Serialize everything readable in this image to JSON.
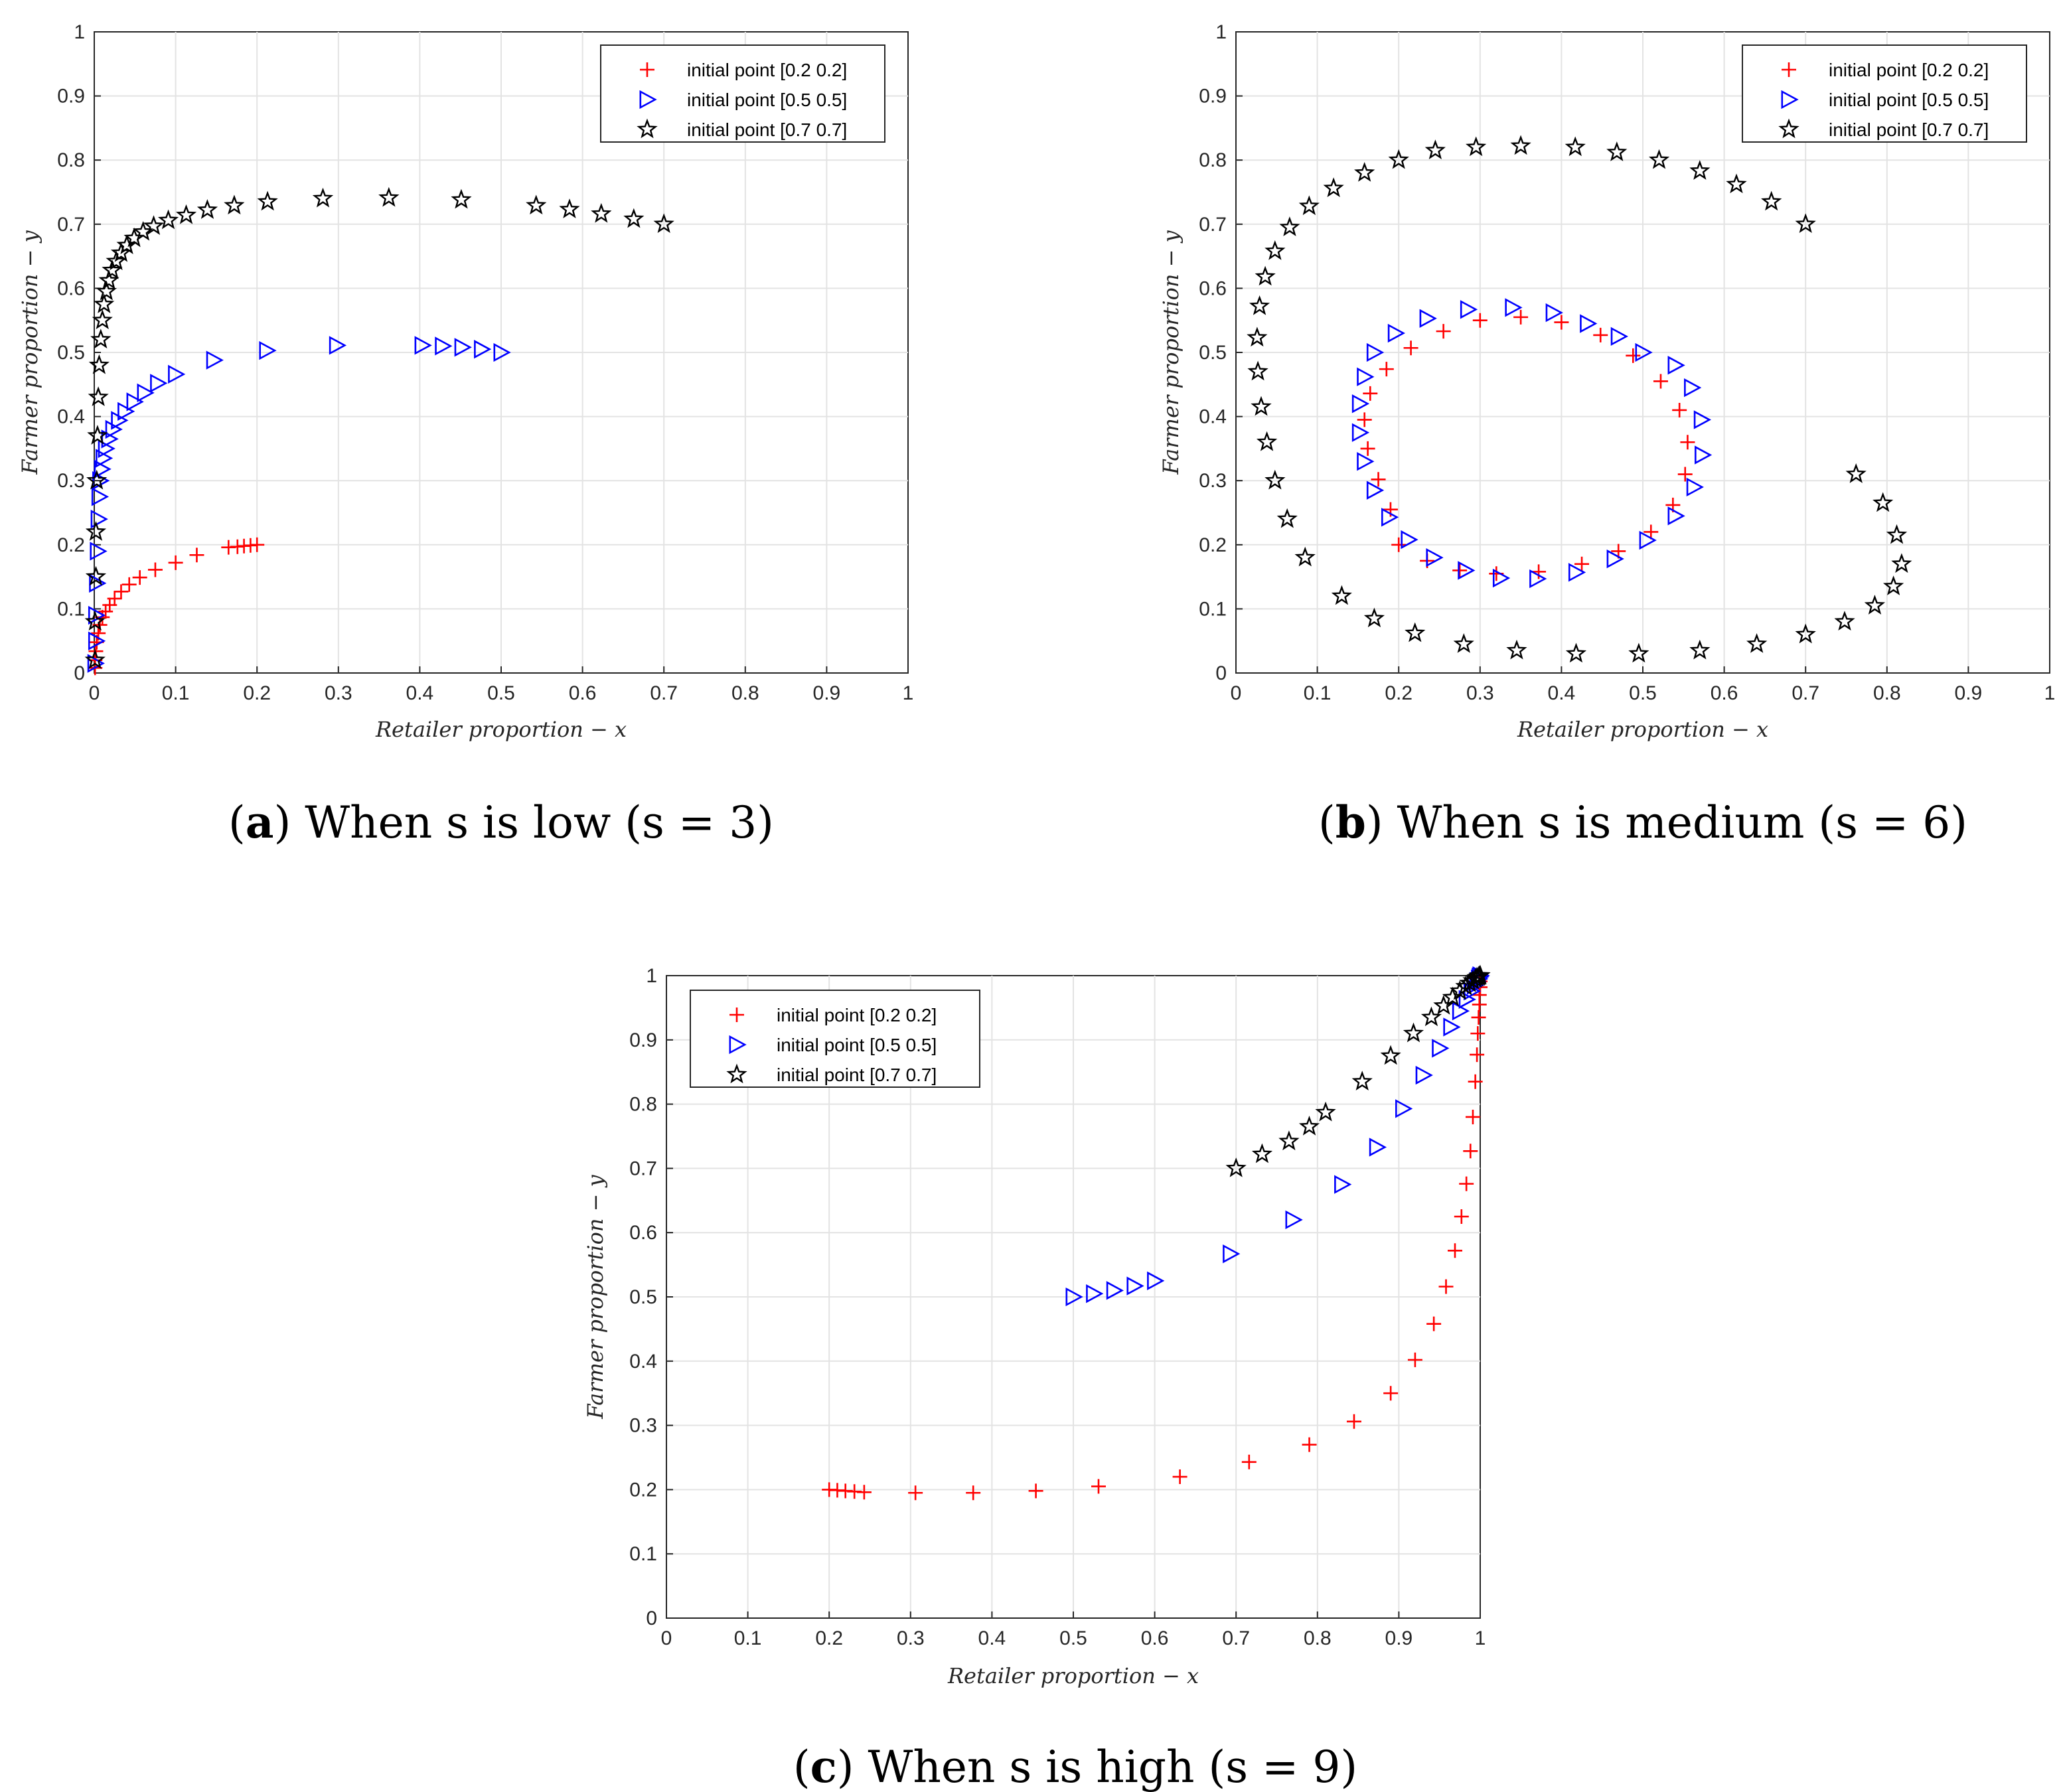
{
  "chart_data": [
    {
      "type": "scatter",
      "panel_letter": "a",
      "caption_text": "When s is low (s = 3)",
      "xlabel": "Retailer proportion − x",
      "ylabel": "Farmer proportion − y",
      "xlim": [
        0,
        1
      ],
      "ylim": [
        0,
        1
      ],
      "xticks": [
        "0",
        "0.1",
        "0.2",
        "0.3",
        "0.4",
        "0.5",
        "0.6",
        "0.7",
        "0.8",
        "0.9",
        "1"
      ],
      "yticks": [
        "0",
        "0.1",
        "0.2",
        "0.3",
        "0.4",
        "0.5",
        "0.6",
        "0.7",
        "0.8",
        "0.9",
        "1"
      ],
      "grid": true,
      "legend_position": "top-right",
      "series": [
        {
          "name": "initial point [0.2 0.2]",
          "marker": "plus",
          "color": "#ff0000",
          "x": [
            0.2,
            0.192,
            0.184,
            0.176,
            0.165,
            0.126,
            0.1,
            0.075,
            0.056,
            0.043,
            0.033,
            0.025,
            0.019,
            0.014,
            0.01,
            0.007,
            0.005,
            0.003,
            0.002,
            0.001,
            0.001
          ],
          "y": [
            0.2,
            0.199,
            0.198,
            0.197,
            0.196,
            0.184,
            0.172,
            0.161,
            0.149,
            0.138,
            0.127,
            0.116,
            0.106,
            0.096,
            0.087,
            0.075,
            0.062,
            0.048,
            0.034,
            0.02,
            0.008
          ]
        },
        {
          "name": "initial point [0.5 0.5]",
          "marker": "triangle-right",
          "color": "#0000ff",
          "x": [
            0.5,
            0.476,
            0.452,
            0.428,
            0.403,
            0.298,
            0.212,
            0.147,
            0.1,
            0.078,
            0.062,
            0.049,
            0.038,
            0.03,
            0.023,
            0.018,
            0.014,
            0.011,
            0.009,
            0.007,
            0.006,
            0.005,
            0.004,
            0.003,
            0.002,
            0.002,
            0.001
          ],
          "y": [
            0.5,
            0.505,
            0.508,
            0.51,
            0.511,
            0.511,
            0.503,
            0.488,
            0.466,
            0.452,
            0.437,
            0.423,
            0.408,
            0.394,
            0.38,
            0.365,
            0.35,
            0.335,
            0.318,
            0.3,
            0.275,
            0.24,
            0.19,
            0.14,
            0.09,
            0.05,
            0.015
          ]
        },
        {
          "name": "initial point [0.7 0.7]",
          "marker": "star",
          "color": "#000000",
          "x": [
            0.7,
            0.663,
            0.623,
            0.584,
            0.543,
            0.451,
            0.362,
            0.281,
            0.213,
            0.172,
            0.139,
            0.113,
            0.091,
            0.073,
            0.06,
            0.049,
            0.04,
            0.033,
            0.027,
            0.022,
            0.018,
            0.015,
            0.012,
            0.01,
            0.008,
            0.006,
            0.005,
            0.004,
            0.003,
            0.002,
            0.002,
            0.001,
            0.001
          ],
          "y": [
            0.7,
            0.708,
            0.716,
            0.723,
            0.729,
            0.738,
            0.741,
            0.74,
            0.735,
            0.729,
            0.722,
            0.714,
            0.706,
            0.697,
            0.688,
            0.678,
            0.667,
            0.655,
            0.642,
            0.628,
            0.612,
            0.595,
            0.575,
            0.55,
            0.52,
            0.48,
            0.43,
            0.37,
            0.3,
            0.22,
            0.15,
            0.08,
            0.02
          ]
        }
      ]
    },
    {
      "type": "scatter",
      "panel_letter": "b",
      "caption_text": "When s is medium (s = 6)",
      "xlabel": "Retailer proportion − x",
      "ylabel": "Farmer proportion − y",
      "xlim": [
        0,
        1
      ],
      "ylim": [
        0,
        1
      ],
      "xticks": [
        "0",
        "0.1",
        "0.2",
        "0.3",
        "0.4",
        "0.5",
        "0.6",
        "0.7",
        "0.8",
        "0.9",
        "1"
      ],
      "yticks": [
        "0",
        "0.1",
        "0.2",
        "0.3",
        "0.4",
        "0.5",
        "0.6",
        "0.7",
        "0.8",
        "0.9",
        "1"
      ],
      "grid": true,
      "legend_position": "top-right",
      "series": [
        {
          "name": "initial point [0.2 0.2]",
          "marker": "plus",
          "color": "#ff0000",
          "x": [
            0.2,
            0.235,
            0.275,
            0.32,
            0.372,
            0.425,
            0.47,
            0.51,
            0.537,
            0.552,
            0.555,
            0.545,
            0.522,
            0.488,
            0.448,
            0.4,
            0.35,
            0.3,
            0.255,
            0.215,
            0.185,
            0.165,
            0.158,
            0.162,
            0.175,
            0.19
          ],
          "y": [
            0.2,
            0.175,
            0.16,
            0.155,
            0.158,
            0.17,
            0.19,
            0.22,
            0.262,
            0.31,
            0.36,
            0.41,
            0.455,
            0.495,
            0.527,
            0.547,
            0.555,
            0.55,
            0.533,
            0.507,
            0.474,
            0.436,
            0.395,
            0.35,
            0.302,
            0.255
          ]
        },
        {
          "name": "initial point [0.5 0.5]",
          "marker": "triangle-right",
          "color": "#0000ff",
          "x": [
            0.5,
            0.47,
            0.432,
            0.39,
            0.34,
            0.285,
            0.235,
            0.196,
            0.17,
            0.158,
            0.152,
            0.152,
            0.158,
            0.17,
            0.188,
            0.212,
            0.243,
            0.282,
            0.325,
            0.37,
            0.418,
            0.465,
            0.505,
            0.54,
            0.563,
            0.573,
            0.572,
            0.56,
            0.54
          ],
          "y": [
            0.5,
            0.525,
            0.545,
            0.562,
            0.57,
            0.567,
            0.553,
            0.53,
            0.5,
            0.462,
            0.42,
            0.375,
            0.33,
            0.285,
            0.243,
            0.208,
            0.18,
            0.16,
            0.148,
            0.147,
            0.157,
            0.178,
            0.207,
            0.245,
            0.29,
            0.34,
            0.395,
            0.445,
            0.48
          ]
        },
        {
          "name": "initial point [0.7 0.7]",
          "marker": "star",
          "color": "#000000",
          "x": [
            0.7,
            0.658,
            0.615,
            0.57,
            0.52,
            0.468,
            0.417,
            0.35,
            0.295,
            0.245,
            0.2,
            0.158,
            0.12,
            0.09,
            0.066,
            0.048,
            0.036,
            0.029,
            0.026,
            0.027,
            0.031,
            0.038,
            0.048,
            0.063,
            0.085,
            0.13,
            0.17,
            0.22,
            0.28,
            0.345,
            0.418,
            0.495,
            0.57,
            0.64,
            0.7,
            0.748,
            0.785,
            0.808,
            0.818,
            0.812,
            0.795,
            0.762
          ],
          "y": [
            0.7,
            0.735,
            0.762,
            0.783,
            0.8,
            0.812,
            0.82,
            0.822,
            0.82,
            0.815,
            0.8,
            0.78,
            0.756,
            0.728,
            0.695,
            0.658,
            0.618,
            0.572,
            0.523,
            0.47,
            0.415,
            0.36,
            0.3,
            0.24,
            0.18,
            0.12,
            0.085,
            0.062,
            0.045,
            0.035,
            0.03,
            0.03,
            0.035,
            0.045,
            0.06,
            0.08,
            0.105,
            0.135,
            0.17,
            0.215,
            0.265,
            0.31
          ]
        }
      ]
    },
    {
      "type": "scatter",
      "panel_letter": "c",
      "caption_text": "When s is high (s = 9)",
      "xlabel": "Retailer proportion − x",
      "ylabel": "Farmer proportion − y",
      "xlim": [
        0,
        1
      ],
      "ylim": [
        0,
        1
      ],
      "xticks": [
        "0",
        "0.1",
        "0.2",
        "0.3",
        "0.4",
        "0.5",
        "0.6",
        "0.7",
        "0.8",
        "0.9",
        "1"
      ],
      "yticks": [
        "0",
        "0.1",
        "0.2",
        "0.3",
        "0.4",
        "0.5",
        "0.6",
        "0.7",
        "0.8",
        "0.9",
        "1"
      ],
      "grid": true,
      "legend_position": "top-left",
      "series": [
        {
          "name": "initial point [0.2 0.2]",
          "marker": "plus",
          "color": "#ff0000",
          "x": [
            0.2,
            0.21,
            0.22,
            0.231,
            0.243,
            0.306,
            0.377,
            0.454,
            0.531,
            0.631,
            0.716,
            0.79,
            0.845,
            0.89,
            0.92,
            0.943,
            0.958,
            0.969,
            0.977,
            0.983,
            0.988,
            0.991,
            0.994,
            0.996,
            0.997,
            0.998,
            0.999,
            0.999,
            1.0,
            1.0,
            1.0
          ],
          "y": [
            0.2,
            0.199,
            0.198,
            0.197,
            0.196,
            0.195,
            0.195,
            0.198,
            0.205,
            0.22,
            0.243,
            0.27,
            0.306,
            0.35,
            0.402,
            0.458,
            0.516,
            0.572,
            0.625,
            0.676,
            0.727,
            0.78,
            0.835,
            0.877,
            0.91,
            0.935,
            0.955,
            0.97,
            0.982,
            0.991,
            0.998
          ]
        },
        {
          "name": "initial point [0.5 0.5]",
          "marker": "triangle-right",
          "color": "#0000ff",
          "x": [
            0.5,
            0.525,
            0.55,
            0.575,
            0.6,
            0.693,
            0.77,
            0.83,
            0.873,
            0.905,
            0.93,
            0.95,
            0.964,
            0.975,
            0.983,
            0.989,
            0.993,
            0.996,
            0.998,
            0.999,
            1.0
          ],
          "y": [
            0.5,
            0.505,
            0.51,
            0.517,
            0.525,
            0.567,
            0.62,
            0.675,
            0.733,
            0.793,
            0.845,
            0.887,
            0.92,
            0.945,
            0.963,
            0.976,
            0.985,
            0.991,
            0.995,
            0.998,
            1.0
          ]
        },
        {
          "name": "initial point [0.7 0.7]",
          "marker": "star",
          "color": "#000000",
          "x": [
            0.7,
            0.732,
            0.765,
            0.79,
            0.81,
            0.855,
            0.89,
            0.918,
            0.94,
            0.955,
            0.966,
            0.975,
            0.982,
            0.987,
            0.991,
            0.994,
            0.996,
            0.998,
            0.999,
            1.0
          ],
          "y": [
            0.7,
            0.722,
            0.742,
            0.765,
            0.787,
            0.835,
            0.875,
            0.91,
            0.935,
            0.953,
            0.966,
            0.976,
            0.983,
            0.988,
            0.992,
            0.995,
            0.997,
            0.998,
            0.999,
            1.0
          ]
        }
      ]
    }
  ]
}
